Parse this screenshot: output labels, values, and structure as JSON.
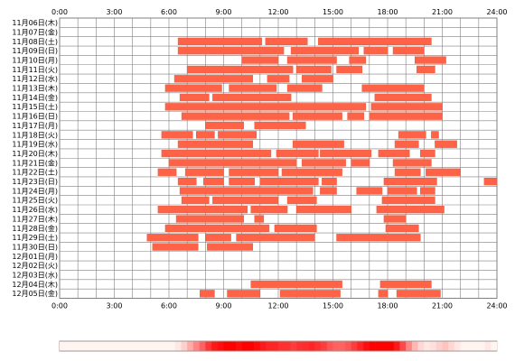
{
  "chart_data": {
    "type": "heatmap",
    "x_ticks": [
      "0:00",
      "3:00",
      "6:00",
      "9:00",
      "12:00",
      "15:00",
      "18:00",
      "21:00",
      "24:00"
    ],
    "x_range_hours": [
      0,
      24
    ],
    "grid": true,
    "days": [
      {
        "label": "11月06日(木)",
        "spans": []
      },
      {
        "label": "11月07日(金)",
        "spans": []
      },
      {
        "label": "11月08日(土)",
        "spans": [
          [
            6.5,
            11.1
          ],
          [
            11.3,
            13.6
          ],
          [
            14.2,
            20.4
          ]
        ]
      },
      {
        "label": "11月09日(日)",
        "spans": [
          [
            6.5,
            12.3
          ],
          [
            12.7,
            16.4
          ],
          [
            16.7,
            18.0
          ],
          [
            18.3,
            20.0
          ]
        ]
      },
      {
        "label": "11月10日(月)",
        "spans": [
          [
            10.0,
            12.0
          ],
          [
            12.5,
            15.2
          ],
          [
            15.9,
            16.8
          ],
          [
            19.5,
            21.2
          ]
        ]
      },
      {
        "label": "11月11日(火)",
        "spans": [
          [
            7.0,
            12.8
          ],
          [
            13.0,
            14.9
          ],
          [
            15.2,
            16.6
          ],
          [
            19.6,
            20.6
          ]
        ]
      },
      {
        "label": "11月12日(水)",
        "spans": [
          [
            6.3,
            10.6
          ],
          [
            11.4,
            12.6
          ],
          [
            13.3,
            15.0
          ]
        ]
      },
      {
        "label": "11月13日(木)",
        "spans": [
          [
            5.8,
            8.9
          ],
          [
            9.3,
            11.9
          ],
          [
            12.5,
            14.4
          ],
          [
            16.6,
            20.0
          ]
        ]
      },
      {
        "label": "11月14日(金)",
        "spans": [
          [
            6.6,
            8.2
          ],
          [
            8.4,
            12.7
          ],
          [
            17.3,
            20.4
          ]
        ]
      },
      {
        "label": "11月15日(土)",
        "spans": [
          [
            5.8,
            16.8
          ],
          [
            17.1,
            21.0
          ]
        ]
      },
      {
        "label": "11月16日(日)",
        "spans": [
          [
            6.7,
            12.6
          ],
          [
            12.8,
            15.5
          ],
          [
            15.8,
            16.7
          ],
          [
            17.0,
            21.0
          ]
        ]
      },
      {
        "label": "11月17日(月)",
        "spans": [
          [
            8.0,
            10.1
          ],
          [
            10.7,
            13.5
          ]
        ]
      },
      {
        "label": "11月18日(火)",
        "spans": [
          [
            5.6,
            7.3
          ],
          [
            7.5,
            8.5
          ],
          [
            8.7,
            10.8
          ],
          [
            18.6,
            20.1
          ],
          [
            20.4,
            20.8
          ]
        ]
      },
      {
        "label": "11月19日(水)",
        "spans": [
          [
            6.5,
            10.6
          ],
          [
            12.8,
            15.6
          ],
          [
            18.4,
            19.7
          ],
          [
            20.6,
            21.8
          ]
        ]
      },
      {
        "label": "11月20日(木)",
        "spans": [
          [
            5.6,
            11.6
          ],
          [
            11.9,
            14.2
          ],
          [
            14.3,
            17.1
          ],
          [
            17.5,
            19.2
          ],
          [
            19.8,
            20.6
          ]
        ]
      },
      {
        "label": "11月21日(金)",
        "spans": [
          [
            6.0,
            13.0
          ],
          [
            13.3,
            15.7
          ],
          [
            16.0,
            17.0
          ],
          [
            18.3,
            20.4
          ]
        ]
      },
      {
        "label": "11月22日(土)",
        "spans": [
          [
            5.4,
            6.4
          ],
          [
            6.9,
            9.0
          ],
          [
            9.3,
            12.0
          ],
          [
            12.2,
            15.5
          ],
          [
            18.4,
            19.8
          ],
          [
            20.1,
            22.0
          ]
        ]
      },
      {
        "label": "11月23日(日)",
        "spans": [
          [
            6.5,
            7.5
          ],
          [
            7.9,
            9.0
          ],
          [
            9.3,
            10.7
          ],
          [
            11.0,
            14.2
          ],
          [
            14.4,
            15.2
          ],
          [
            17.8,
            20.7
          ],
          [
            23.3,
            24.0
          ]
        ]
      },
      {
        "label": "11月24日(月)",
        "spans": [
          [
            6.6,
            13.9
          ],
          [
            14.3,
            15.2
          ],
          [
            16.3,
            17.7
          ],
          [
            18.0,
            19.6
          ],
          [
            19.8,
            20.6
          ]
        ]
      },
      {
        "label": "11月25日(火)",
        "spans": [
          [
            6.7,
            8.2
          ],
          [
            8.4,
            12.0
          ],
          [
            12.5,
            14.1
          ],
          [
            17.7,
            20.6
          ]
        ]
      },
      {
        "label": "11月26日(水)",
        "spans": [
          [
            5.4,
            10.3
          ],
          [
            10.5,
            12.5
          ],
          [
            13.0,
            16.0
          ],
          [
            17.4,
            21.1
          ]
        ]
      },
      {
        "label": "11月27日(木)",
        "spans": [
          [
            6.4,
            10.1
          ],
          [
            10.7,
            11.2
          ],
          [
            17.8,
            19.0
          ]
        ]
      },
      {
        "label": "11月28日(金)",
        "spans": [
          [
            5.8,
            11.5
          ],
          [
            11.8,
            14.1
          ],
          [
            17.9,
            19.7
          ]
        ]
      },
      {
        "label": "11月29日(土)",
        "spans": [
          [
            4.8,
            7.6
          ],
          [
            8.0,
            9.4
          ],
          [
            9.7,
            14.0
          ],
          [
            15.2,
            19.8
          ]
        ]
      },
      {
        "label": "11月30日(日)",
        "spans": [
          [
            5.1,
            7.6
          ],
          [
            8.1,
            10.6
          ]
        ]
      },
      {
        "label": "12月01日(月)",
        "spans": []
      },
      {
        "label": "12月02日(火)",
        "spans": []
      },
      {
        "label": "12月03日(水)",
        "spans": []
      },
      {
        "label": "12月04日(木)",
        "spans": [
          [
            10.5,
            15.5
          ],
          [
            17.6,
            20.4
          ]
        ]
      },
      {
        "label": "12月05日(金)",
        "spans": [
          [
            7.7,
            8.5
          ],
          [
            9.2,
            11.0
          ],
          [
            12.1,
            15.4
          ],
          [
            17.5,
            18.0
          ],
          [
            18.5,
            20.9
          ]
        ]
      }
    ],
    "density": [
      0,
      0,
      0,
      0,
      0,
      0,
      0,
      0,
      0,
      0,
      0,
      0,
      0,
      0,
      0,
      0,
      0,
      0,
      0,
      0.05,
      0.15,
      0.3,
      0.45,
      0.6,
      0.78,
      0.9,
      0.95,
      1,
      1,
      0.95,
      1,
      1,
      0.95,
      0.9,
      0.85,
      0.85,
      0.8,
      0.8,
      0.75,
      0.8,
      0.82,
      0.85,
      0.8,
      0.75,
      0.65,
      0.6,
      0.6,
      0.65,
      0.75,
      0.85,
      0.95,
      1,
      1,
      1,
      1,
      0.9,
      0.7,
      0.45,
      0.25,
      0.12,
      0.05,
      0.08,
      0.15,
      0.2,
      0.12,
      0.05,
      0,
      0,
      0,
      0,
      0.05,
      0
    ],
    "colors": {
      "bar": "#ff6347",
      "bar_stroke": "#ee5a3c",
      "grid": "#808080",
      "background": "#ffffff",
      "density_low": "#fff4f0",
      "density_high": "#ff0000"
    }
  }
}
